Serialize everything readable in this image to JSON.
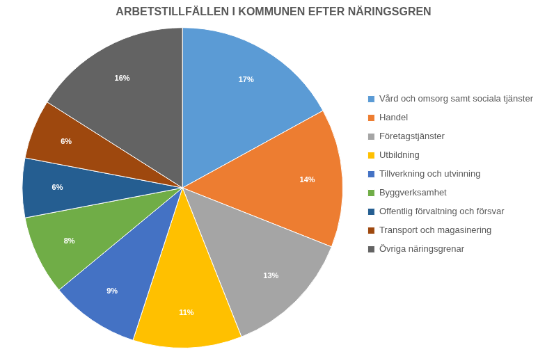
{
  "chart_data": {
    "type": "pie",
    "title": "ARBETSTILLFÄLLEN I KOMMUNEN EFTER NÄRINGSGREN",
    "categories": [
      "Vård och omsorg samt sociala tjänster",
      "Handel",
      "Företagstjänster",
      "Utbildning",
      "Tillverkning och utvinning",
      "Byggverksamhet",
      "Offentlig förvaltning och försvar",
      "Transport och magasinering",
      "Övriga näringsgrenar"
    ],
    "values": [
      17,
      14,
      13,
      11,
      9,
      8,
      6,
      6,
      16
    ],
    "value_labels": [
      "17%",
      "14%",
      "13%",
      "11%",
      "9%",
      "8%",
      "6%",
      "6%",
      "16%"
    ],
    "colors": [
      "#5b9bd5",
      "#ed7d31",
      "#a5a5a5",
      "#ffc000",
      "#4472c4",
      "#70ad47",
      "#255e91",
      "#9e480e",
      "#636363"
    ],
    "legend": "right",
    "data_labels": true
  }
}
